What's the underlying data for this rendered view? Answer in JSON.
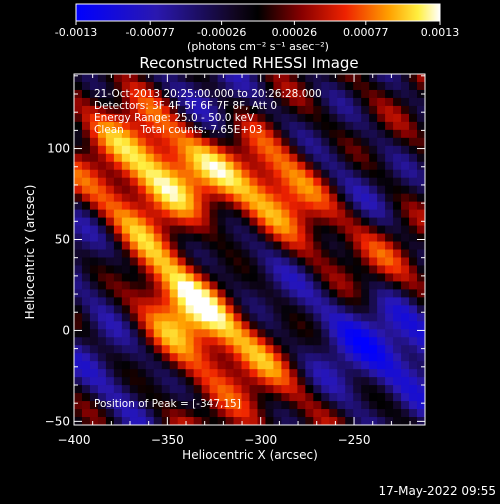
{
  "colorbar": {
    "ticks": [
      "-0.0013",
      "-0.00077",
      "-0.00026",
      "0.00026",
      "0.00077",
      "0.0013"
    ],
    "tick_values": [
      -0.0013,
      -0.00077,
      -0.00026,
      0.00026,
      0.00077,
      0.0013
    ],
    "range": [
      -0.0013,
      0.0013
    ],
    "unit_label": "(photons cm⁻² s⁻¹ asec⁻²)",
    "colormap": "rhessi-blue-black-red-yellow-white"
  },
  "info": {
    "time": "21-Oct-2013 20:25:00.000 to 20:26:28.000",
    "detectors": "Detectors: 3F 4F 5F 6F 7F 8F, Att 0",
    "energy": "Energy Range: 25.0 - 50.0 keV",
    "clean": "Clean     Total counts: 7.65E+03",
    "peak": "Position of Peak = [-347,15]"
  },
  "footer": {
    "date": "17-May-2022 09:55"
  },
  "chart_data": {
    "type": "heatmap",
    "title": "Reconstructed RHESSI Image",
    "xlabel": "Heliocentric X (arcsec)",
    "ylabel": "Heliocentric Y (arcsec)",
    "xlim": [
      -400,
      -212
    ],
    "ylim": [
      -52,
      141
    ],
    "xticks": [
      -400,
      -350,
      -300,
      -250
    ],
    "yticks": [
      -50,
      0,
      50,
      100
    ],
    "xtick_labels": [
      "−400",
      "−350",
      "−300",
      "−250"
    ],
    "ytick_labels": [
      "−50",
      "0",
      "50",
      "100"
    ],
    "grid": false,
    "peak_position": [
      -347,
      15
    ],
    "bright_sources": [
      {
        "x": -346,
        "y": 17,
        "intensity": 1.0
      },
      {
        "x": -289,
        "y": 84,
        "intensity": 0.92
      },
      {
        "x": -356,
        "y": 100,
        "intensity": 0.65
      },
      {
        "x": -374,
        "y": 67,
        "intensity": 0.6
      },
      {
        "x": -325,
        "y": 74,
        "intensity": 0.55
      },
      {
        "x": -235,
        "y": 35,
        "intensity": 0.45
      },
      {
        "x": -303,
        "y": -15,
        "intensity": 0.45
      },
      {
        "x": -343,
        "y": -45,
        "intensity": 0.35
      }
    ],
    "dark_sources": [
      {
        "x": -382,
        "y": 40,
        "intensity": -0.6
      },
      {
        "x": -315,
        "y": 45,
        "intensity": -0.55
      },
      {
        "x": -220,
        "y": -5,
        "intensity": -0.7
      },
      {
        "x": -260,
        "y": 80,
        "intensity": -0.5
      },
      {
        "x": -371,
        "y": -30,
        "intensity": -0.5
      },
      {
        "x": -255,
        "y": -15,
        "intensity": -0.45
      },
      {
        "x": -326,
        "y": 122,
        "intensity": -0.45
      }
    ]
  }
}
